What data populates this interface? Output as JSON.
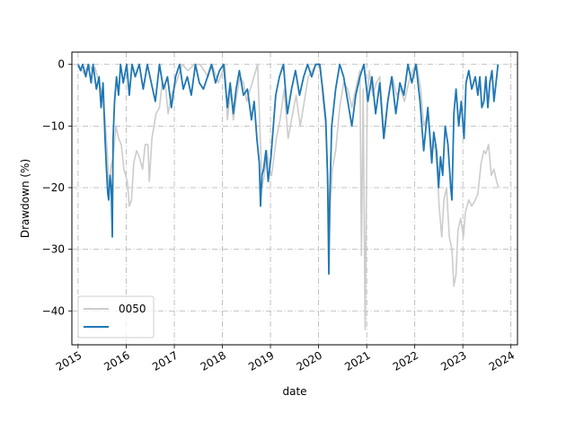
{
  "chart_data": {
    "type": "line",
    "title": "",
    "xlabel": "date",
    "ylabel": "Drawdown (%)",
    "xlim": [
      "2014-11-15",
      "2024-02-20"
    ],
    "ylim": [
      -45.5,
      2
    ],
    "x_ticks": [
      "2015",
      "2016",
      "2017",
      "2018",
      "2019",
      "2020",
      "2021",
      "2022",
      "2023",
      "2024"
    ],
    "y_ticks": [
      0,
      -10,
      -20,
      -30,
      -40
    ],
    "grid": true,
    "grid_style": "dash-dot",
    "legend_placement": "lower-left",
    "series": [
      {
        "name": "0050",
        "color": "#cccccc",
        "points": [
          [
            "2015-01-01",
            0
          ],
          [
            "2015-02-15",
            -1.5
          ],
          [
            "2015-03-25",
            0
          ],
          [
            "2015-04-20",
            -1
          ],
          [
            "2015-05-10",
            -0.5
          ],
          [
            "2015-06-10",
            -3
          ],
          [
            "2015-07-05",
            -5
          ],
          [
            "2015-07-25",
            -9
          ],
          [
            "2015-08-10",
            -14
          ],
          [
            "2015-08-24",
            -21
          ],
          [
            "2015-09-05",
            -17
          ],
          [
            "2015-09-25",
            -15
          ],
          [
            "2015-10-15",
            -10
          ],
          [
            "2015-11-05",
            -12
          ],
          [
            "2015-11-25",
            -13
          ],
          [
            "2015-12-15",
            -17
          ],
          [
            "2016-01-10",
            -19
          ],
          [
            "2016-01-25",
            -23
          ],
          [
            "2016-02-10",
            -22
          ],
          [
            "2016-02-28",
            -16
          ],
          [
            "2016-03-20",
            -14
          ],
          [
            "2016-04-10",
            -15
          ],
          [
            "2016-05-05",
            -17
          ],
          [
            "2016-05-25",
            -13
          ],
          [
            "2016-06-15",
            -13
          ],
          [
            "2016-06-25",
            -19
          ],
          [
            "2016-07-15",
            -12
          ],
          [
            "2016-08-15",
            -8
          ],
          [
            "2016-09-10",
            -7
          ],
          [
            "2016-10-01",
            -3
          ],
          [
            "2016-10-25",
            -3.5
          ],
          [
            "2016-11-15",
            -8
          ],
          [
            "2016-12-10",
            -5
          ],
          [
            "2017-01-15",
            -3
          ],
          [
            "2017-03-01",
            0
          ],
          [
            "2017-04-15",
            -1
          ],
          [
            "2017-06-01",
            0
          ],
          [
            "2017-07-15",
            0
          ],
          [
            "2017-09-15",
            -2
          ],
          [
            "2017-10-15",
            0
          ],
          [
            "2017-12-01",
            -3
          ],
          [
            "2018-01-20",
            0
          ],
          [
            "2018-02-08",
            -9
          ],
          [
            "2018-03-05",
            -4
          ],
          [
            "2018-03-25",
            -9
          ],
          [
            "2018-04-20",
            -5
          ],
          [
            "2018-05-15",
            -2
          ],
          [
            "2018-06-10",
            -3
          ],
          [
            "2018-07-05",
            -6
          ],
          [
            "2018-08-15",
            -3
          ],
          [
            "2018-09-25",
            0
          ],
          [
            "2018-10-12",
            -10
          ],
          [
            "2018-10-29",
            -20
          ],
          [
            "2018-11-15",
            -18
          ],
          [
            "2018-12-05",
            -14
          ],
          [
            "2018-12-25",
            -17
          ],
          [
            "2019-01-10",
            -18
          ],
          [
            "2019-02-15",
            -12
          ],
          [
            "2019-03-15",
            -9
          ],
          [
            "2019-04-15",
            -4
          ],
          [
            "2019-05-15",
            -12
          ],
          [
            "2019-06-10",
            -9
          ],
          [
            "2019-07-15",
            -5
          ],
          [
            "2019-08-15",
            -10
          ],
          [
            "2019-09-15",
            -6
          ],
          [
            "2019-10-15",
            -2
          ],
          [
            "2019-11-15",
            -1
          ],
          [
            "2019-12-15",
            0
          ],
          [
            "2020-01-15",
            0
          ],
          [
            "2020-02-05",
            -6
          ],
          [
            "2020-02-25",
            -10
          ],
          [
            "2020-03-12",
            -20
          ],
          [
            "2020-03-19",
            -31
          ],
          [
            "2020-03-30",
            -23
          ],
          [
            "2020-04-15",
            -17
          ],
          [
            "2020-05-10",
            -14
          ],
          [
            "2020-06-10",
            -7
          ],
          [
            "2020-07-10",
            -3
          ],
          [
            "2020-08-10",
            -4
          ],
          [
            "2020-09-10",
            -7
          ],
          [
            "2020-10-10",
            -4
          ],
          [
            "2020-11-10",
            -1
          ],
          [
            "2020-11-22",
            -31
          ],
          [
            "2020-12-05",
            -4
          ],
          [
            "2020-12-20",
            -43
          ],
          [
            "2021-01-05",
            -6
          ],
          [
            "2021-01-20",
            -1
          ],
          [
            "2021-02-15",
            -5
          ],
          [
            "2021-03-15",
            -3
          ],
          [
            "2021-04-10",
            -2
          ],
          [
            "2021-05-15",
            -12
          ],
          [
            "2021-06-15",
            -5
          ],
          [
            "2021-07-15",
            -2
          ],
          [
            "2021-08-15",
            -5
          ],
          [
            "2021-09-15",
            -4
          ],
          [
            "2021-10-15",
            -6
          ],
          [
            "2021-11-15",
            -3
          ],
          [
            "2021-12-15",
            -1
          ],
          [
            "2022-01-15",
            0
          ],
          [
            "2022-02-15",
            -4
          ],
          [
            "2022-03-10",
            -10
          ],
          [
            "2022-04-10",
            -8
          ],
          [
            "2022-05-10",
            -14
          ],
          [
            "2022-06-01",
            -13
          ],
          [
            "2022-06-20",
            -17
          ],
          [
            "2022-07-05",
            -23
          ],
          [
            "2022-07-25",
            -28
          ],
          [
            "2022-08-10",
            -22
          ],
          [
            "2022-08-30",
            -20
          ],
          [
            "2022-09-20",
            -28
          ],
          [
            "2022-10-10",
            -30
          ],
          [
            "2022-10-25",
            -36
          ],
          [
            "2022-11-10",
            -34
          ],
          [
            "2022-11-25",
            -27
          ],
          [
            "2022-12-15",
            -25
          ],
          [
            "2023-01-05",
            -28
          ],
          [
            "2023-01-20",
            -24
          ],
          [
            "2023-02-15",
            -22
          ],
          [
            "2023-03-10",
            -23
          ],
          [
            "2023-04-05",
            -22
          ],
          [
            "2023-04-25",
            -21
          ],
          [
            "2023-05-20",
            -16
          ],
          [
            "2023-06-10",
            -14
          ],
          [
            "2023-06-25",
            -14.5
          ],
          [
            "2023-07-15",
            -13
          ],
          [
            "2023-08-05",
            -18
          ],
          [
            "2023-08-25",
            -17
          ],
          [
            "2023-09-15",
            -19
          ],
          [
            "2023-09-30",
            -20
          ]
        ]
      },
      {
        "name": "",
        "color": "#1f77b4",
        "points": [
          [
            "2015-01-01",
            0
          ],
          [
            "2015-01-20",
            -1
          ],
          [
            "2015-02-05",
            0
          ],
          [
            "2015-03-01",
            -2
          ],
          [
            "2015-03-20",
            0
          ],
          [
            "2015-04-10",
            -3
          ],
          [
            "2015-04-25",
            0
          ],
          [
            "2015-05-20",
            -4
          ],
          [
            "2015-06-10",
            -2
          ],
          [
            "2015-06-25",
            -7
          ],
          [
            "2015-07-10",
            -3
          ],
          [
            "2015-07-25",
            -12
          ],
          [
            "2015-08-05",
            -17
          ],
          [
            "2015-08-15",
            -21
          ],
          [
            "2015-08-22",
            -22
          ],
          [
            "2015-09-01",
            -18
          ],
          [
            "2015-09-10",
            -20
          ],
          [
            "2015-09-18",
            -28
          ],
          [
            "2015-09-24",
            -12
          ],
          [
            "2015-10-05",
            -6
          ],
          [
            "2015-10-20",
            -2
          ],
          [
            "2015-11-05",
            -5
          ],
          [
            "2015-11-20",
            0
          ],
          [
            "2015-12-10",
            -3
          ],
          [
            "2016-01-05",
            0
          ],
          [
            "2016-01-25",
            -5
          ],
          [
            "2016-02-15",
            0
          ],
          [
            "2016-03-10",
            -2
          ],
          [
            "2016-04-10",
            0
          ],
          [
            "2016-05-10",
            -4
          ],
          [
            "2016-06-10",
            0
          ],
          [
            "2016-07-10",
            -3
          ],
          [
            "2016-08-10",
            -6
          ],
          [
            "2016-09-10",
            0
          ],
          [
            "2016-10-10",
            -4
          ],
          [
            "2016-11-10",
            -2
          ],
          [
            "2016-12-10",
            -7
          ],
          [
            "2017-01-10",
            -2
          ],
          [
            "2017-02-10",
            0
          ],
          [
            "2017-03-10",
            -4
          ],
          [
            "2017-04-10",
            -2
          ],
          [
            "2017-05-10",
            -5
          ],
          [
            "2017-06-10",
            0
          ],
          [
            "2017-07-10",
            -3
          ],
          [
            "2017-08-10",
            -4
          ],
          [
            "2017-09-10",
            -2
          ],
          [
            "2017-10-10",
            0
          ],
          [
            "2017-11-10",
            -3
          ],
          [
            "2017-12-10",
            -1
          ],
          [
            "2018-01-10",
            0
          ],
          [
            "2018-02-08",
            -7
          ],
          [
            "2018-03-01",
            -3
          ],
          [
            "2018-03-25",
            -8
          ],
          [
            "2018-04-15",
            -4
          ],
          [
            "2018-05-10",
            -1
          ],
          [
            "2018-06-10",
            -5
          ],
          [
            "2018-07-10",
            -4
          ],
          [
            "2018-08-10",
            -9
          ],
          [
            "2018-08-30",
            -6
          ],
          [
            "2018-09-20",
            -12
          ],
          [
            "2018-10-08",
            -16
          ],
          [
            "2018-10-18",
            -23
          ],
          [
            "2018-10-28",
            -18
          ],
          [
            "2018-11-10",
            -17
          ],
          [
            "2018-11-28",
            -14
          ],
          [
            "2018-12-15",
            -19
          ],
          [
            "2019-01-05",
            -15
          ],
          [
            "2019-02-10",
            -5
          ],
          [
            "2019-03-10",
            -2
          ],
          [
            "2019-04-10",
            0
          ],
          [
            "2019-05-10",
            -8
          ],
          [
            "2019-06-10",
            -4
          ],
          [
            "2019-07-10",
            -1
          ],
          [
            "2019-08-10",
            -5
          ],
          [
            "2019-09-10",
            -2
          ],
          [
            "2019-10-10",
            0
          ],
          [
            "2019-11-10",
            -2
          ],
          [
            "2019-12-10",
            0
          ],
          [
            "2020-01-10",
            0
          ],
          [
            "2020-02-01",
            -4
          ],
          [
            "2020-02-25",
            -9
          ],
          [
            "2020-03-10",
            -18
          ],
          [
            "2020-03-19",
            -34
          ],
          [
            "2020-03-26",
            -22
          ],
          [
            "2020-04-10",
            -10
          ],
          [
            "2020-05-10",
            -4
          ],
          [
            "2020-06-10",
            0
          ],
          [
            "2020-07-10",
            -2
          ],
          [
            "2020-08-10",
            -6
          ],
          [
            "2020-09-10",
            -10
          ],
          [
            "2020-10-10",
            -5
          ],
          [
            "2020-11-10",
            -2
          ],
          [
            "2020-12-10",
            0
          ],
          [
            "2021-01-10",
            -6
          ],
          [
            "2021-02-10",
            -2
          ],
          [
            "2021-03-10",
            -8
          ],
          [
            "2021-04-10",
            -3
          ],
          [
            "2021-05-10",
            -12
          ],
          [
            "2021-06-10",
            -6
          ],
          [
            "2021-07-10",
            -2
          ],
          [
            "2021-08-10",
            -8
          ],
          [
            "2021-09-10",
            -3
          ],
          [
            "2021-10-10",
            -5
          ],
          [
            "2021-11-10",
            0
          ],
          [
            "2021-12-10",
            -3
          ],
          [
            "2022-01-10",
            0
          ],
          [
            "2022-02-10",
            -6
          ],
          [
            "2022-03-10",
            -14
          ],
          [
            "2022-04-10",
            -7
          ],
          [
            "2022-05-10",
            -16
          ],
          [
            "2022-05-25",
            -11
          ],
          [
            "2022-06-15",
            -14
          ],
          [
            "2022-07-01",
            -20
          ],
          [
            "2022-07-15",
            -15
          ],
          [
            "2022-08-01",
            -18
          ],
          [
            "2022-08-20",
            -10
          ],
          [
            "2022-09-10",
            -13
          ],
          [
            "2022-10-01",
            -20
          ],
          [
            "2022-10-10",
            -22
          ],
          [
            "2022-10-25",
            -8
          ],
          [
            "2022-11-10",
            -4
          ],
          [
            "2022-12-01",
            -10
          ],
          [
            "2022-12-20",
            -6
          ],
          [
            "2023-01-10",
            -12
          ],
          [
            "2023-01-25",
            -3
          ],
          [
            "2023-02-15",
            -1
          ],
          [
            "2023-03-10",
            -4
          ],
          [
            "2023-04-05",
            -2
          ],
          [
            "2023-04-25",
            -5
          ],
          [
            "2023-05-10",
            -2
          ],
          [
            "2023-05-25",
            -7
          ],
          [
            "2023-06-10",
            -6
          ],
          [
            "2023-06-25",
            -2
          ],
          [
            "2023-07-10",
            -7
          ],
          [
            "2023-07-25",
            -3
          ],
          [
            "2023-08-10",
            -1
          ],
          [
            "2023-08-25",
            -6
          ],
          [
            "2023-09-10",
            -3
          ],
          [
            "2023-09-25",
            0
          ]
        ]
      }
    ]
  }
}
